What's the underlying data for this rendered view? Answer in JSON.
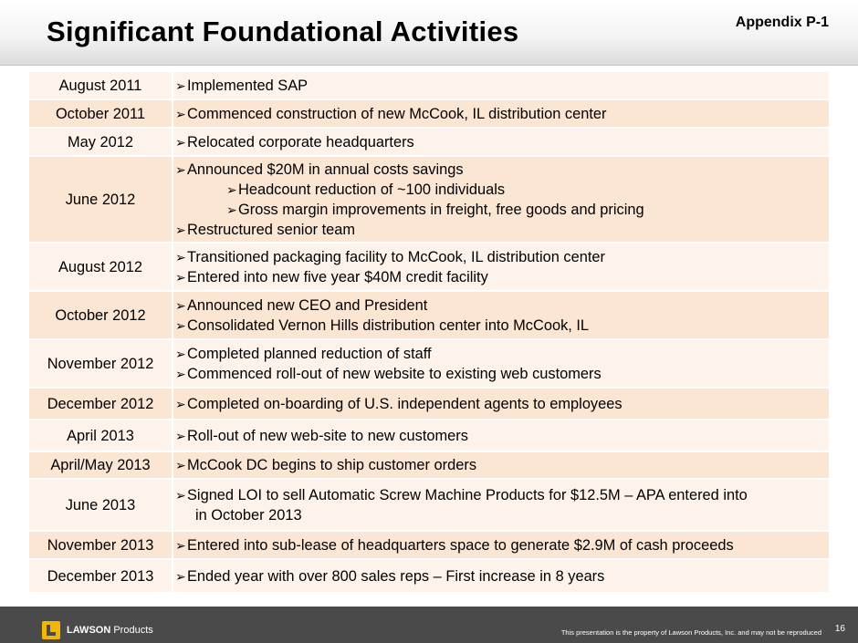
{
  "header": {
    "title": "Significant Foundational Activities",
    "appendix": "Appendix P-1"
  },
  "rows": [
    {
      "date": "August 2011",
      "lines": [
        {
          "text": "Implemented SAP",
          "level": "main"
        }
      ]
    },
    {
      "date": "October 2011",
      "lines": [
        {
          "text": "Commenced construction of new McCook, IL distribution center",
          "level": "main"
        }
      ]
    },
    {
      "date": "May 2012",
      "lines": [
        {
          "text": "Relocated corporate headquarters",
          "level": "main"
        }
      ]
    },
    {
      "date": "June 2012",
      "lines": [
        {
          "text": "Announced $20M in annual costs savings",
          "level": "main"
        },
        {
          "text": "Headcount reduction of ~100 individuals",
          "level": "sub"
        },
        {
          "text": "Gross margin improvements in freight, free goods and pricing",
          "level": "sub"
        },
        {
          "text": "Restructured senior team",
          "level": "main"
        }
      ]
    },
    {
      "date": "August 2012",
      "lines": [
        {
          "text": "Transitioned packaging facility to McCook, IL distribution center",
          "level": "main"
        },
        {
          "text": "Entered into new five year $40M credit facility",
          "level": "main"
        }
      ]
    },
    {
      "date": "October 2012",
      "lines": [
        {
          "text": "Announced new CEO and President",
          "level": "main"
        },
        {
          "text": "Consolidated Vernon Hills distribution center into McCook, IL",
          "level": "main"
        }
      ]
    },
    {
      "date": "November 2012",
      "lines": [
        {
          "text": "Completed planned reduction of staff",
          "level": "main"
        },
        {
          "text": "Commenced roll-out of new website to existing web customers",
          "level": "main"
        }
      ]
    },
    {
      "date": "December 2012",
      "lines": [
        {
          "text": "Completed on-boarding of U.S. independent agents to employees",
          "level": "main"
        }
      ]
    },
    {
      "date": "April 2013",
      "lines": [
        {
          "text": "Roll-out of new web-site to new customers",
          "level": "main"
        }
      ]
    },
    {
      "date": "April/May 2013",
      "lines": [
        {
          "text": "McCook DC begins to ship customer orders",
          "level": "main"
        }
      ]
    },
    {
      "date": "June 2013",
      "lines": [
        {
          "text": "Signed LOI to sell Automatic Screw Machine Products for $12.5M – APA entered into",
          "level": "main"
        },
        {
          "text": "in October 2013",
          "level": "cont"
        }
      ]
    },
    {
      "date": "November 2013",
      "lines": [
        {
          "text": "Entered into sub-lease of headquarters space to generate $2.9M of cash proceeds",
          "level": "main"
        }
      ]
    },
    {
      "date": "December 2013",
      "lines": [
        {
          "text": "Ended year with over 800 sales reps – First increase in 8 years",
          "level": "main"
        }
      ]
    }
  ],
  "footer": {
    "brand_bold": "LAWSON",
    "brand_rest": "Products",
    "disclaimer": "This presentation is the property of Lawson Products, Inc. and may not be reproduced",
    "page_number": "16"
  },
  "colors": {
    "row_light": "#fdf3ea",
    "row_dark": "#fbe5d3",
    "footer_bg": "#4a4a4a",
    "logo_gold": "#f2b705"
  },
  "icons": {
    "bullet": "arrow-bullet-icon",
    "logo": "lawson-logo-icon"
  }
}
